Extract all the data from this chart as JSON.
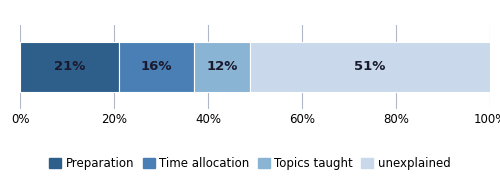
{
  "segments": [
    {
      "label": "Preparation",
      "value": 21,
      "color": "#2e5f8a"
    },
    {
      "label": "Time allocation",
      "value": 16,
      "color": "#4a7fb5"
    },
    {
      "label": "Topics taught",
      "value": 12,
      "color": "#8ab4d4"
    },
    {
      "label": "unexplained",
      "value": 51,
      "color": "#c9d9eb"
    }
  ],
  "xlim": [
    0,
    100
  ],
  "xticks": [
    0,
    20,
    40,
    60,
    80,
    100
  ],
  "xticklabels": [
    "0%",
    "20%",
    "40%",
    "60%",
    "80%",
    "100%"
  ],
  "bar_height": 0.6,
  "label_fontsize": 9.5,
  "legend_fontsize": 8.5,
  "tick_fontsize": 8.5,
  "label_color": "#1a1a2e",
  "background_color": "#ffffff",
  "grid_color": "#b0b8c8"
}
